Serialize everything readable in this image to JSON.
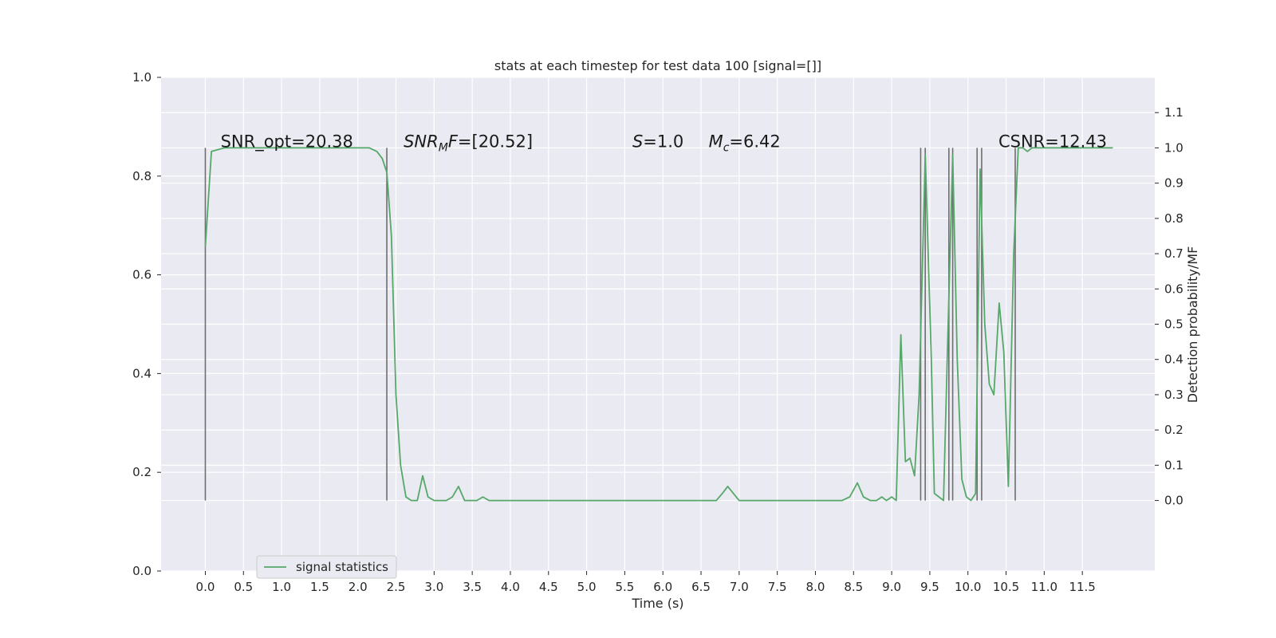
{
  "chart_data": {
    "type": "line",
    "title": "stats at each timestep for test data 100 [signal=[]]",
    "xlabel": "Time (s)",
    "ylabel_left": "",
    "ylabel_right": "Detection probability/MF",
    "xlim": [
      -0.58,
      12.45
    ],
    "ylim_left": [
      0.0,
      1.0
    ],
    "ylim_right": [
      -0.2,
      1.2
    ],
    "x_ticks": [
      0.0,
      0.5,
      1.0,
      1.5,
      2.0,
      2.5,
      3.0,
      3.5,
      4.0,
      4.5,
      5.0,
      5.5,
      6.0,
      6.5,
      7.0,
      7.5,
      8.0,
      8.5,
      9.0,
      9.5,
      10.0,
      10.5,
      11.0,
      11.5
    ],
    "x_tick_labels": [
      "0.0",
      "0.5",
      "1.0",
      "1.5",
      "2.0",
      "2.5",
      "3.0",
      "3.5",
      "4.0",
      "4.5",
      "5.0",
      "5.5",
      "6.0",
      "6.5",
      "7.0",
      "7.5",
      "8.0",
      "8.5",
      "9.0",
      "9.5",
      "10.0",
      "10.5",
      "11.0",
      "11.5"
    ],
    "y_left_ticks": [
      0.0,
      0.2,
      0.4,
      0.6,
      0.8,
      1.0
    ],
    "y_left_tick_labels": [
      "0.0",
      "0.2",
      "0.4",
      "0.6",
      "0.8",
      "1.0"
    ],
    "y_right_ticks": [
      0.0,
      0.1,
      0.2,
      0.3,
      0.4,
      0.5,
      0.6,
      0.7,
      0.8,
      0.9,
      1.0,
      1.1
    ],
    "y_right_tick_labels": [
      "0.0",
      "0.1",
      "0.2",
      "0.3",
      "0.4",
      "0.5",
      "0.6",
      "0.7",
      "0.8",
      "0.9",
      "1.0",
      "1.1"
    ],
    "grid": true,
    "legend_placement": "lower-left",
    "background": "#eaeaf2",
    "series": [
      {
        "name": "signal statistics",
        "color": "#55a868",
        "axis": "right",
        "x": [
          0.0,
          0.08,
          0.25,
          0.5,
          1.0,
          1.5,
          2.0,
          2.15,
          2.25,
          2.32,
          2.38,
          2.44,
          2.5,
          2.56,
          2.63,
          2.7,
          2.78,
          2.85,
          2.92,
          3.0,
          3.08,
          3.16,
          3.24,
          3.32,
          3.4,
          3.48,
          3.56,
          3.64,
          3.72,
          3.8,
          3.88,
          3.96,
          4.05,
          4.5,
          5.0,
          5.5,
          6.0,
          6.5,
          6.7,
          6.78,
          6.85,
          7.0,
          7.5,
          8.0,
          8.35,
          8.45,
          8.55,
          8.63,
          8.72,
          8.8,
          8.87,
          8.93,
          9.0,
          9.06,
          9.12,
          9.18,
          9.24,
          9.3,
          9.36,
          9.44,
          9.52,
          9.56,
          9.62,
          9.68,
          9.74,
          9.8,
          9.86,
          9.92,
          9.98,
          10.04,
          10.1,
          10.16,
          10.22,
          10.28,
          10.34,
          10.41,
          10.47,
          10.53,
          10.6,
          10.66,
          10.72,
          10.78,
          10.84,
          10.9,
          10.96,
          11.05,
          11.5,
          11.9
        ],
        "y": [
          0.72,
          0.99,
          1.0,
          1.0,
          1.0,
          1.0,
          1.0,
          1.0,
          0.99,
          0.97,
          0.93,
          0.75,
          0.3,
          0.1,
          0.01,
          0.0,
          0.0,
          0.07,
          0.01,
          0.0,
          0.0,
          0.0,
          0.01,
          0.04,
          0.0,
          0.0,
          0.0,
          0.01,
          0.0,
          0.0,
          0.0,
          0.0,
          0.0,
          0.0,
          0.0,
          0.0,
          0.0,
          0.0,
          0.0,
          0.02,
          0.04,
          0.0,
          0.0,
          0.0,
          0.0,
          0.01,
          0.05,
          0.01,
          0.0,
          0.0,
          0.01,
          0.0,
          0.01,
          0.0,
          0.47,
          0.11,
          0.12,
          0.07,
          0.3,
          0.98,
          0.4,
          0.02,
          0.01,
          0.0,
          0.5,
          0.98,
          0.4,
          0.06,
          0.01,
          0.0,
          0.02,
          0.94,
          0.5,
          0.33,
          0.3,
          0.56,
          0.42,
          0.04,
          0.7,
          1.0,
          1.0,
          0.99,
          1.0,
          1.0,
          1.0,
          1.0,
          1.0,
          1.0
        ]
      }
    ],
    "vertical_lines": {
      "color": "#6e6e6e",
      "x": [
        0.0,
        2.38,
        9.38,
        9.44,
        9.75,
        9.8,
        10.12,
        10.18,
        10.62
      ],
      "y_range_right": [
        0.0,
        1.0
      ]
    },
    "annotations": [
      {
        "key": "snr_opt",
        "text": "SNR_opt=20.38",
        "x": 0.2,
        "y": 1.0
      },
      {
        "key": "snr_mf",
        "text_pre": "SNR",
        "text_sub": "M",
        "text_post": "F=[20.52]",
        "x": 2.6,
        "y": 1.0
      },
      {
        "key": "s",
        "text_pre": "S",
        "text_post": "=1.0",
        "x": 5.6,
        "y": 1.0
      },
      {
        "key": "mc",
        "text_pre": "M",
        "text_sub": "c",
        "text_post": "=6.42",
        "x": 6.6,
        "y": 1.0
      },
      {
        "key": "csnr",
        "text": "CSNR=12.43",
        "x": 10.4,
        "y": 1.0
      }
    ]
  }
}
